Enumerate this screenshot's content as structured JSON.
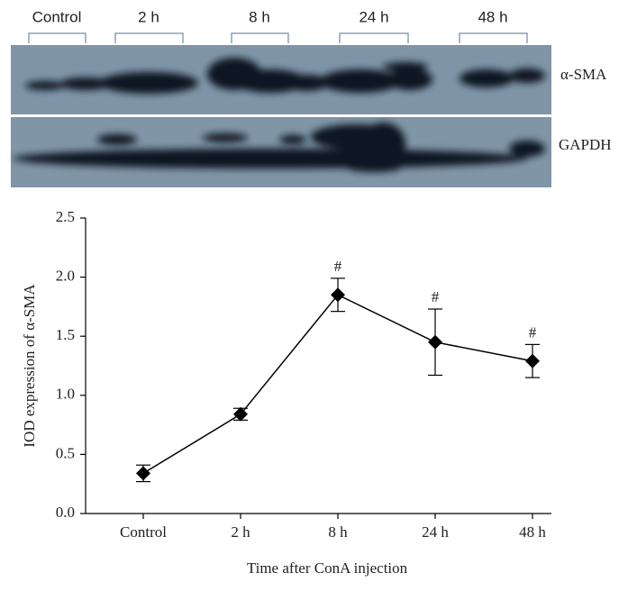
{
  "blot": {
    "lanes": [
      "Control",
      "2 h",
      "8 h",
      "24 h",
      "48 h"
    ],
    "bands": [
      "α-SMA",
      "GAPDH"
    ]
  },
  "chart_data": {
    "type": "line",
    "ylabel": "IOD expression of α-SMA",
    "xlabel": "Time after ConA injection",
    "categories": [
      "Control",
      "2 h",
      "8 h",
      "24 h",
      "48 h"
    ],
    "values": [
      0.34,
      0.84,
      1.85,
      1.45,
      1.29
    ],
    "errors": [
      0.07,
      0.05,
      0.14,
      0.28,
      0.14
    ],
    "significance": [
      null,
      null,
      "#",
      "#",
      "#"
    ],
    "color": "#000000",
    "ylim": [
      0,
      2.5
    ],
    "yticks": [
      {
        "value": 0,
        "label": "0.0"
      },
      0.5,
      {
        "value": 1,
        "label": "1.0"
      },
      1.5,
      {
        "value": 2,
        "label": "2.0"
      },
      2.5
    ]
  }
}
